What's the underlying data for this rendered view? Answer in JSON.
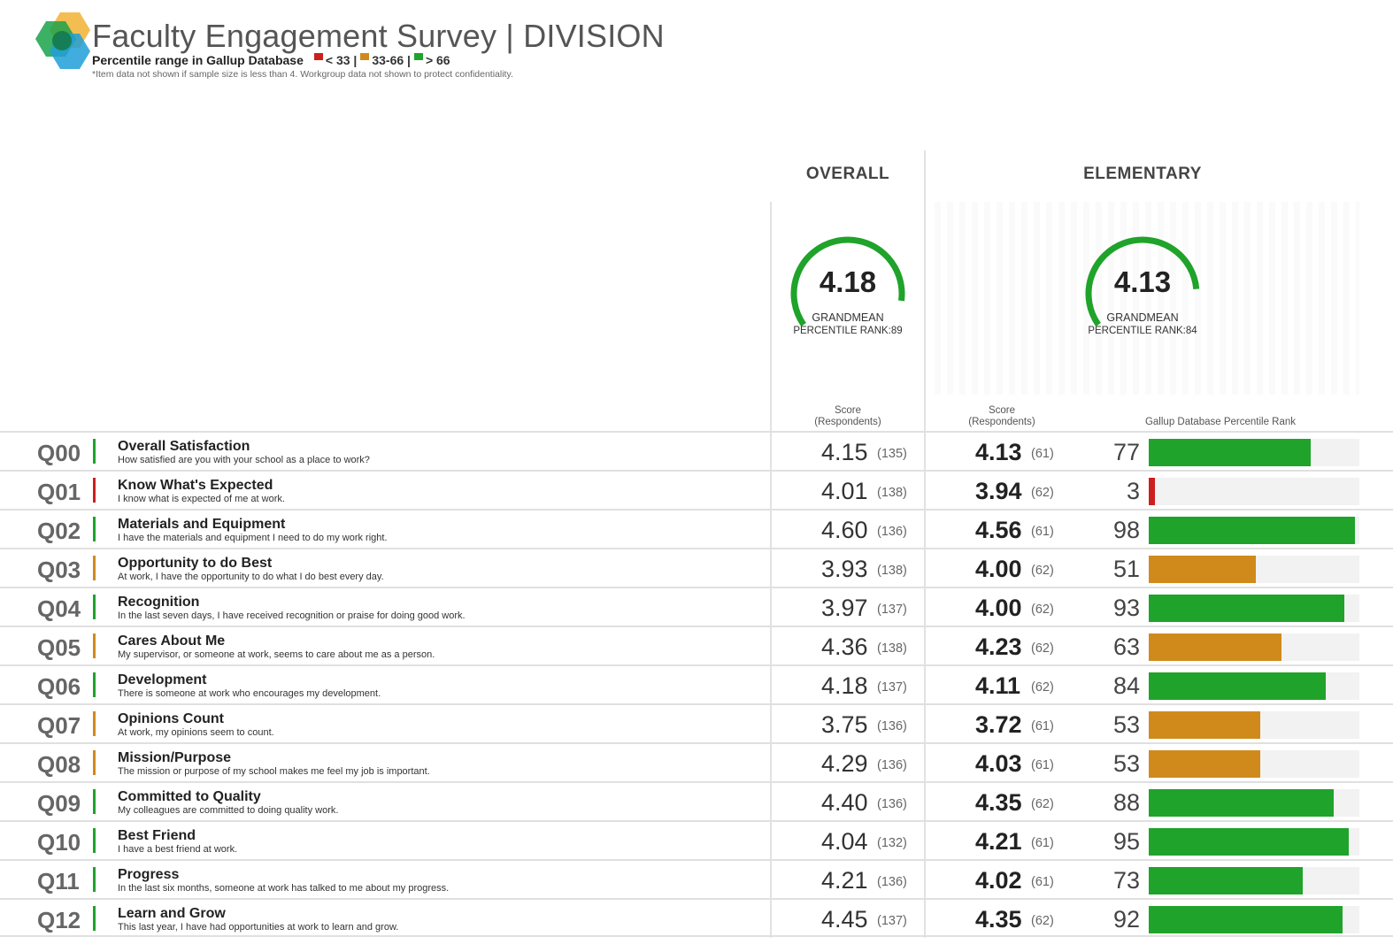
{
  "title": "Faculty Engagement Survey | DIVISION",
  "legend": {
    "label": "Percentile range in Gallup Database",
    "low": "< 33 |",
    "mid": "33-66 |",
    "high": "> 66",
    "colors": {
      "low": "#cc1f1f",
      "mid": "#d08a1c",
      "high": "#1fa32a"
    }
  },
  "note": "*Item data not shown if sample size is less than 4. Workgroup data not shown to protect confidentiality.",
  "columns": {
    "overall": "OVERALL",
    "elementary": "ELEMENTARY"
  },
  "gauges": {
    "overall": {
      "value": "4.18",
      "label": "GRANDMEAN",
      "rank_text": "PERCENTILE RANK:89",
      "percentile": 89
    },
    "elementary": {
      "value": "4.13",
      "label": "GRANDMEAN",
      "rank_text": "PERCENTILE RANK:84",
      "percentile": 84
    }
  },
  "subheads": {
    "score": "Score",
    "respondents": "(Respondents)",
    "percentile_rank": "Gallup Database Percentile Rank"
  },
  "rows": [
    {
      "id": "Q00",
      "title": "Overall Satisfaction",
      "text": "How satisfied are you with your school as a place to work?",
      "flag": "high",
      "o_score": "4.15",
      "o_resp": "(135)",
      "e_score": "4.13",
      "e_resp": "(61)",
      "rank": "77"
    },
    {
      "id": "Q01",
      "title": "Know What's Expected",
      "text": "I know what is expected of me at work.",
      "flag": "low",
      "o_score": "4.01",
      "o_resp": "(138)",
      "e_score": "3.94",
      "e_resp": "(62)",
      "rank": "3"
    },
    {
      "id": "Q02",
      "title": "Materials and Equipment",
      "text": "I have the materials and equipment I need to do my work right.",
      "flag": "high",
      "o_score": "4.60",
      "o_resp": "(136)",
      "e_score": "4.56",
      "e_resp": "(61)",
      "rank": "98"
    },
    {
      "id": "Q03",
      "title": "Opportunity to do Best",
      "text": "At work, I have the opportunity to do what I do best every day.",
      "flag": "mid",
      "o_score": "3.93",
      "o_resp": "(138)",
      "e_score": "4.00",
      "e_resp": "(62)",
      "rank": "51"
    },
    {
      "id": "Q04",
      "title": "Recognition",
      "text": "In the last seven days, I have received recognition or praise for doing good work.",
      "flag": "high",
      "o_score": "3.97",
      "o_resp": "(137)",
      "e_score": "4.00",
      "e_resp": "(62)",
      "rank": "93"
    },
    {
      "id": "Q05",
      "title": "Cares About Me",
      "text": "My supervisor, or someone at work, seems to care about me as a person.",
      "flag": "mid",
      "o_score": "4.36",
      "o_resp": "(138)",
      "e_score": "4.23",
      "e_resp": "(62)",
      "rank": "63"
    },
    {
      "id": "Q06",
      "title": "Development",
      "text": "There is someone at work who encourages my development.",
      "flag": "high",
      "o_score": "4.18",
      "o_resp": "(137)",
      "e_score": "4.11",
      "e_resp": "(62)",
      "rank": "84"
    },
    {
      "id": "Q07",
      "title": "Opinions Count",
      "text": "At work, my opinions seem to count.",
      "flag": "mid",
      "o_score": "3.75",
      "o_resp": "(136)",
      "e_score": "3.72",
      "e_resp": "(61)",
      "rank": "53"
    },
    {
      "id": "Q08",
      "title": "Mission/Purpose",
      "text": "The mission or purpose of my school makes me feel my job is important.",
      "flag": "mid",
      "o_score": "4.29",
      "o_resp": "(136)",
      "e_score": "4.03",
      "e_resp": "(61)",
      "rank": "53"
    },
    {
      "id": "Q09",
      "title": "Committed to Quality",
      "text": "My colleagues are committed to doing quality work.",
      "flag": "high",
      "o_score": "4.40",
      "o_resp": "(136)",
      "e_score": "4.35",
      "e_resp": "(62)",
      "rank": "88"
    },
    {
      "id": "Q10",
      "title": "Best Friend",
      "text": "I have a best friend at work.",
      "flag": "high",
      "o_score": "4.04",
      "o_resp": "(132)",
      "e_score": "4.21",
      "e_resp": "(61)",
      "rank": "95"
    },
    {
      "id": "Q11",
      "title": "Progress",
      "text": "In the last six months, someone at work has talked to me about my progress.",
      "flag": "high",
      "o_score": "4.21",
      "o_resp": "(136)",
      "e_score": "4.02",
      "e_resp": "(61)",
      "rank": "73"
    },
    {
      "id": "Q12",
      "title": "Learn and Grow",
      "text": "This last year, I have had opportunities at work to learn and grow.",
      "flag": "high",
      "o_score": "4.45",
      "o_resp": "(137)",
      "e_score": "4.35",
      "e_resp": "(62)",
      "rank": "92"
    }
  ]
}
